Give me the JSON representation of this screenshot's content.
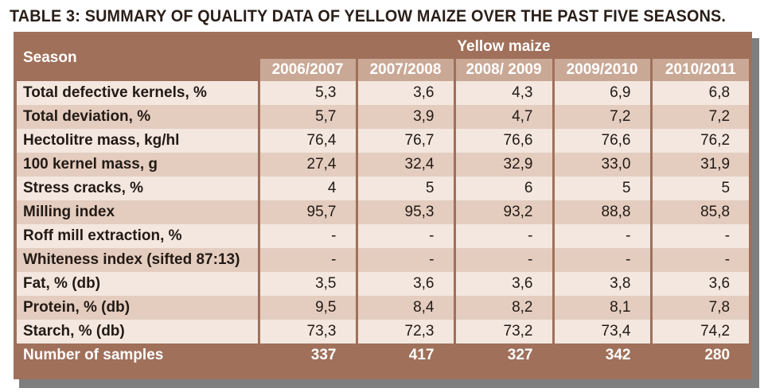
{
  "title": "TABLE 3: SUMMARY OF QUALITY DATA OF YELLOW MAIZE OVER THE PAST FIVE SEASONS.",
  "colors": {
    "frame": "#a0705a",
    "year_header": "#c9a896",
    "row_light": "#f3e7df",
    "row_dark": "#e4cdbf"
  },
  "table": {
    "row_header": "Season",
    "group_header": "Yellow maize",
    "years": [
      "2006/2007",
      "2007/2008",
      "2008/ 2009",
      "2009/2010",
      "2010/2011"
    ],
    "rows": [
      {
        "label": "Total defective kernels, %",
        "values": [
          "5,3",
          "3,6",
          "4,3",
          "6,9",
          "6,8"
        ]
      },
      {
        "label": "Total deviation, %",
        "values": [
          "5,7",
          "3,9",
          "4,7",
          "7,2",
          "7,2"
        ]
      },
      {
        "label": "Hectolitre mass, kg/hl",
        "values": [
          "76,4",
          "76,7",
          "76,6",
          "76,6",
          "76,2"
        ]
      },
      {
        "label": "100 kernel mass, g",
        "values": [
          "27,4",
          "32,4",
          "32,9",
          "33,0",
          "31,9"
        ]
      },
      {
        "label": "Stress cracks, %",
        "values": [
          "4",
          "5",
          "6",
          "5",
          "5"
        ]
      },
      {
        "label": "Milling index",
        "values": [
          "95,7",
          "95,3",
          "93,2",
          "88,8",
          "85,8"
        ]
      },
      {
        "label": "Roff mill extraction, %",
        "values": [
          "-",
          "-",
          "-",
          "-",
          "-"
        ]
      },
      {
        "label": "Whiteness index (sifted 87:13)",
        "values": [
          "-",
          "-",
          "-",
          "-",
          "-"
        ]
      },
      {
        "label": "Fat, % (db)",
        "values": [
          "3,5",
          "3,6",
          "3,6",
          "3,8",
          "3,6"
        ]
      },
      {
        "label": "Protein, % (db)",
        "values": [
          "9,5",
          "8,4",
          "8,2",
          "8,1",
          "7,8"
        ]
      },
      {
        "label": "Starch, % (db)",
        "values": [
          "73,3",
          "72,3",
          "73,2",
          "73,4",
          "74,2"
        ]
      }
    ],
    "footer": {
      "label": "Number of samples",
      "values": [
        "337",
        "417",
        "327",
        "342",
        "280"
      ]
    }
  }
}
